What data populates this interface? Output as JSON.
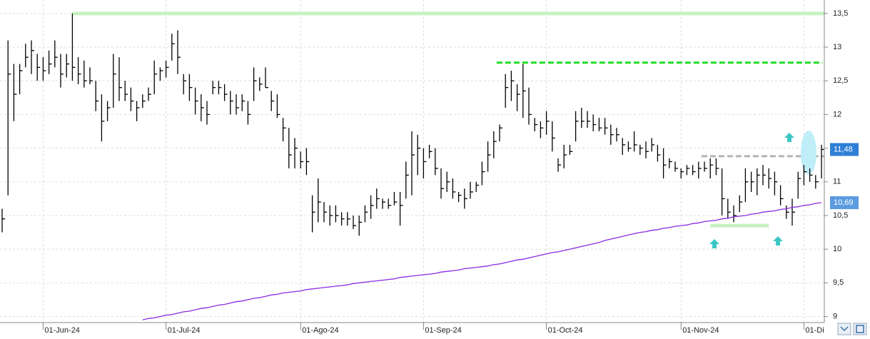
{
  "chart_data": {
    "type": "ohlc",
    "ylim": [
      8.91,
      13.7
    ],
    "yticks": [
      9,
      {
        "value": 9.5,
        "label": "9,5"
      },
      10,
      {
        "value": 10.5,
        "label": "10,5"
      },
      11,
      {
        "value": 11.5,
        "label": "11,5"
      },
      12,
      {
        "value": 12.5,
        "label": "12,5"
      },
      13,
      {
        "value": 13.5,
        "label": "13,5"
      }
    ],
    "grid": true,
    "bar_color": "#000000",
    "categories": [
      null,
      null,
      null,
      null,
      null,
      null,
      null,
      "01-Jun-24",
      null,
      null,
      null,
      null,
      null,
      null,
      null,
      null,
      null,
      null,
      null,
      null,
      null,
      null,
      null,
      null,
      null,
      null,
      null,
      null,
      "01-Jul-24",
      null,
      null,
      null,
      null,
      null,
      null,
      null,
      null,
      null,
      null,
      null,
      null,
      null,
      null,
      null,
      null,
      null,
      null,
      null,
      null,
      null,
      null,
      "01-Ago-24",
      null,
      null,
      null,
      null,
      null,
      null,
      null,
      null,
      null,
      null,
      null,
      null,
      null,
      null,
      null,
      null,
      null,
      null,
      null,
      null,
      "01-Sep-24",
      null,
      null,
      null,
      null,
      null,
      null,
      null,
      null,
      null,
      null,
      null,
      null,
      null,
      null,
      null,
      null,
      null,
      null,
      null,
      null,
      "01-Oct-24",
      null,
      null,
      null,
      null,
      null,
      null,
      null,
      null,
      null,
      null,
      null,
      null,
      null,
      null,
      null,
      null,
      null,
      null,
      null,
      null,
      null,
      null,
      "01-Nov-24",
      null,
      null,
      null,
      null,
      null,
      null,
      null,
      null,
      null,
      null,
      null,
      null,
      null,
      null,
      null,
      null,
      null,
      null,
      null,
      null,
      "01-Di",
      null,
      null,
      null
    ],
    "high": [
      10.6,
      13.1,
      12.75,
      12.75,
      13.05,
      13.1,
      12.9,
      12.85,
      12.95,
      13.1,
      12.9,
      12.9,
      13.5,
      12.85,
      12.8,
      12.7,
      12.5,
      12.3,
      12.2,
      12.9,
      12.85,
      12.5,
      12.4,
      12.2,
      12.3,
      12.4,
      12.8,
      12.7,
      12.8,
      13.2,
      13.25,
      12.6,
      12.6,
      12.4,
      12.3,
      12.2,
      12.5,
      12.5,
      12.45,
      12.35,
      12.3,
      12.3,
      12.2,
      12.7,
      12.55,
      12.7,
      12.35,
      12.3,
      11.95,
      11.8,
      11.65,
      11.45,
      11.5,
      10.8,
      11.05,
      10.7,
      10.65,
      10.65,
      10.55,
      10.55,
      10.5,
      10.5,
      10.65,
      10.8,
      10.9,
      10.75,
      10.75,
      10.85,
      10.85,
      11.3,
      11.75,
      11.7,
      11.5,
      11.55,
      11.5,
      11.2,
      11.15,
      11.05,
      10.85,
      10.9,
      11.0,
      11.0,
      11.3,
      11.6,
      11.75,
      11.85,
      12.6,
      12.65,
      12.45,
      12.75,
      12.4,
      11.95,
      11.9,
      12.05,
      11.9,
      11.35,
      11.55,
      11.55,
      12.05,
      12.1,
      12.05,
      12.0,
      11.95,
      11.95,
      11.85,
      11.8,
      11.65,
      11.6,
      11.75,
      11.55,
      11.6,
      11.65,
      11.55,
      11.5,
      11.35,
      11.3,
      11.2,
      11.25,
      11.25,
      11.3,
      11.3,
      11.35,
      11.35,
      11.2,
      10.75,
      10.65,
      10.8,
      11.2,
      11.15,
      11.2,
      11.25,
      11.2,
      11.15,
      10.95,
      10.65,
      10.75,
      11.15,
      11.25,
      11.2,
      11.1,
      11.55
    ],
    "low": [
      10.25,
      10.8,
      11.9,
      12.3,
      12.7,
      12.6,
      12.5,
      12.5,
      12.6,
      12.7,
      12.4,
      12.55,
      12.5,
      12.45,
      12.4,
      12.45,
      12.05,
      11.6,
      11.9,
      12.1,
      12.2,
      12.2,
      12.05,
      11.9,
      12.1,
      12.2,
      12.3,
      12.5,
      12.55,
      12.8,
      12.6,
      12.3,
      12.2,
      12.0,
      11.9,
      11.85,
      12.3,
      12.3,
      12.2,
      12.0,
      12.0,
      12.05,
      11.85,
      12.2,
      12.35,
      12.4,
      12.05,
      11.95,
      11.6,
      11.2,
      11.2,
      11.2,
      11.1,
      10.25,
      10.4,
      10.4,
      10.35,
      10.4,
      10.35,
      10.35,
      10.3,
      10.2,
      10.4,
      10.45,
      10.6,
      10.6,
      10.6,
      10.65,
      10.35,
      10.75,
      10.8,
      11.1,
      11.05,
      11.35,
      11.1,
      10.75,
      10.85,
      10.75,
      10.7,
      10.6,
      10.75,
      10.85,
      10.95,
      11.15,
      11.35,
      11.6,
      12.1,
      12.2,
      12.05,
      11.95,
      11.85,
      11.75,
      11.65,
      11.7,
      11.45,
      11.15,
      11.2,
      11.4,
      11.6,
      11.8,
      11.8,
      11.75,
      11.75,
      11.7,
      11.55,
      11.6,
      11.4,
      11.45,
      11.45,
      11.4,
      11.35,
      11.45,
      11.3,
      11.05,
      11.2,
      11.15,
      11.05,
      11.1,
      11.1,
      11.05,
      11.15,
      11.05,
      11.1,
      10.5,
      10.45,
      10.4,
      10.55,
      10.7,
      10.85,
      10.8,
      10.95,
      10.9,
      10.8,
      10.65,
      10.45,
      10.35,
      10.75,
      10.95,
      11.0,
      10.9,
      11.05
    ],
    "close": [
      10.45,
      12.6,
      12.3,
      12.65,
      12.85,
      12.95,
      12.7,
      12.65,
      12.75,
      12.85,
      12.6,
      12.75,
      12.7,
      12.6,
      12.5,
      12.5,
      12.2,
      11.9,
      12.1,
      12.6,
      12.4,
      12.3,
      12.2,
      12.1,
      12.2,
      12.3,
      12.6,
      12.65,
      12.7,
      13.05,
      12.85,
      12.5,
      12.4,
      12.2,
      12.1,
      12.0,
      12.4,
      12.4,
      12.3,
      12.2,
      12.1,
      12.2,
      12.0,
      12.5,
      12.45,
      12.4,
      12.2,
      12.0,
      11.8,
      11.4,
      11.5,
      11.3,
      11.3,
      10.55,
      10.7,
      10.55,
      10.5,
      10.5,
      10.45,
      10.45,
      10.35,
      10.4,
      10.55,
      10.65,
      10.75,
      10.7,
      10.65,
      10.7,
      10.65,
      11.1,
      11.4,
      11.5,
      11.3,
      11.45,
      11.2,
      10.9,
      11.0,
      10.85,
      10.8,
      10.75,
      10.85,
      10.95,
      11.15,
      11.4,
      11.6,
      11.8,
      12.4,
      12.5,
      12.3,
      12.35,
      12.0,
      11.85,
      11.8,
      11.9,
      11.65,
      11.25,
      11.4,
      11.45,
      11.9,
      11.9,
      11.9,
      11.85,
      11.8,
      11.8,
      11.7,
      11.7,
      11.55,
      11.5,
      11.55,
      11.5,
      11.45,
      11.55,
      11.4,
      11.25,
      11.3,
      11.2,
      11.15,
      11.2,
      11.15,
      11.2,
      11.2,
      11.25,
      11.2,
      10.75,
      10.55,
      10.5,
      10.7,
      11.0,
      11.0,
      11.1,
      11.1,
      11.05,
      11.0,
      10.75,
      10.55,
      10.55,
      11.05,
      11.15,
      11.1,
      11.0,
      11.48
    ],
    "ma": {
      "color": "#8a2be2",
      "values": [
        null,
        null,
        null,
        null,
        null,
        null,
        null,
        null,
        null,
        null,
        null,
        null,
        null,
        null,
        null,
        null,
        null,
        null,
        null,
        null,
        null,
        null,
        null,
        null,
        8.95,
        8.97,
        8.98,
        9.0,
        9.02,
        9.03,
        9.05,
        9.07,
        9.08,
        9.1,
        9.12,
        9.13,
        9.15,
        9.17,
        9.18,
        9.2,
        9.22,
        9.23,
        9.25,
        9.27,
        9.28,
        9.3,
        9.32,
        9.33,
        9.35,
        9.36,
        9.37,
        9.38,
        9.4,
        9.41,
        9.42,
        9.43,
        9.44,
        9.45,
        9.46,
        9.47,
        9.49,
        9.5,
        9.51,
        9.52,
        9.53,
        9.54,
        9.55,
        9.56,
        9.58,
        9.59,
        9.6,
        9.61,
        9.62,
        9.63,
        9.64,
        9.66,
        9.67,
        9.68,
        9.69,
        9.71,
        9.72,
        9.73,
        9.74,
        9.75,
        9.77,
        9.78,
        9.8,
        9.82,
        9.84,
        9.85,
        9.87,
        9.89,
        9.91,
        9.93,
        9.95,
        9.96,
        9.98,
        10.0,
        10.02,
        10.04,
        10.06,
        10.08,
        10.1,
        10.13,
        10.15,
        10.17,
        10.19,
        10.21,
        10.23,
        10.25,
        10.26,
        10.28,
        10.29,
        10.31,
        10.32,
        10.34,
        10.35,
        10.36,
        10.38,
        10.39,
        10.41,
        10.42,
        10.43,
        10.45,
        10.46,
        10.48,
        10.49,
        10.5,
        10.52,
        10.53,
        10.55,
        10.56,
        10.57,
        10.59,
        10.6,
        10.62,
        10.63,
        10.65,
        10.66,
        10.68,
        10.69
      ]
    },
    "levels": [
      {
        "value": 13.5,
        "color": "#c6f2c0",
        "dashed": false
      },
      {
        "value": 12.77,
        "color": "#22dd22",
        "dashed": true
      },
      {
        "value": 11.38,
        "color": "#b4b4b4",
        "dashed": true
      },
      {
        "value": 10.35,
        "color": "#c6f2c0",
        "dashed": false
      }
    ],
    "price_labels": [
      {
        "value": 11.48,
        "label": "11,48",
        "color": "#2f7fd6"
      },
      {
        "value": 10.69,
        "label": "10,69",
        "color": "#5b9be0"
      }
    ]
  }
}
